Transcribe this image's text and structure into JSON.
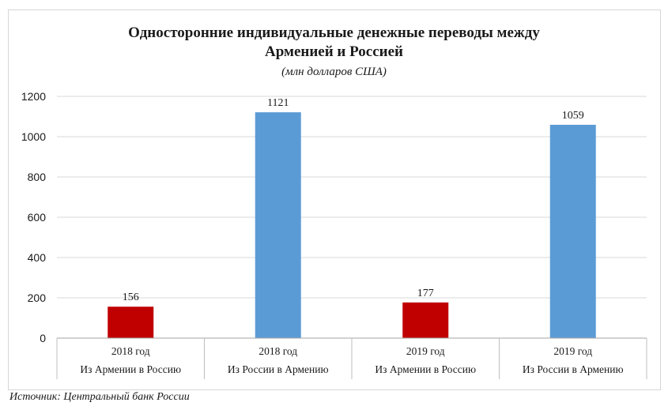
{
  "chart_data": {
    "type": "bar",
    "title_line1": "Односторонние индивидуальные денежные переводы между",
    "title_line2": "Арменией и Россией",
    "subtitle": "(млн долларов США)",
    "categories": [
      {
        "year": "2018 год",
        "direction": "Из Армении в Россию"
      },
      {
        "year": "2018 год",
        "direction": "Из России в Армению"
      },
      {
        "year": "2019 год",
        "direction": "Из Армении в Россию"
      },
      {
        "year": "2019 год",
        "direction": "Из России в Армению"
      }
    ],
    "values": [
      156,
      1121,
      177,
      1059
    ],
    "bar_colors": [
      "#c00000",
      "#5b9bd5",
      "#c00000",
      "#5b9bd5"
    ],
    "ylim": [
      0,
      1200
    ],
    "yticks": [
      "0",
      "200",
      "400",
      "600",
      "800",
      "1000",
      "1200"
    ],
    "grid": true,
    "legend": "none"
  },
  "source": "Источник: Центральный банк России"
}
